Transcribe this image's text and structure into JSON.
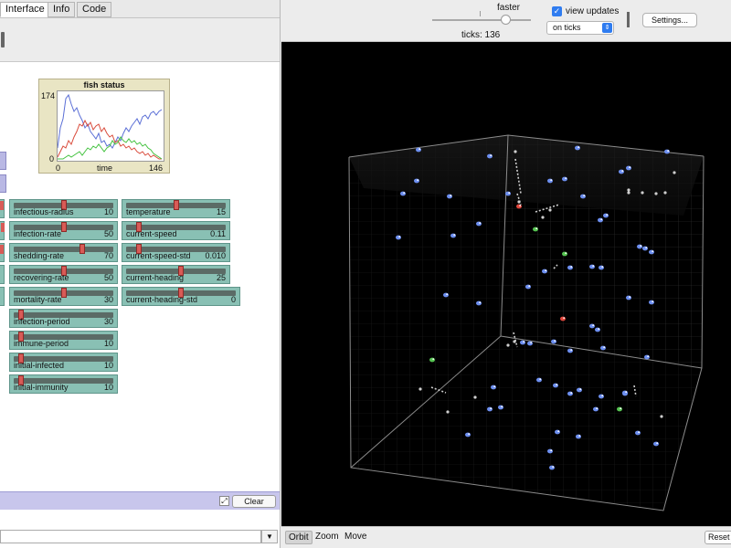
{
  "tabs": [
    {
      "label": "Interface",
      "active": true
    },
    {
      "label": "Info",
      "active": false
    },
    {
      "label": "Code",
      "active": false
    }
  ],
  "plot": {
    "title": "fish status",
    "y_max_label": "174",
    "y_min_label": "0",
    "x_min_label": "0",
    "x_axis_label": "time",
    "x_max_label": "146"
  },
  "sliders": [
    {
      "label": "infectious-radius",
      "value": "10",
      "fraction": 0.5
    },
    {
      "label": "infection-rate",
      "value": "50",
      "fraction": 0.5
    },
    {
      "label": "shedding-rate",
      "value": "70",
      "fraction": 0.7
    },
    {
      "label": "recovering-rate",
      "value": "50",
      "fraction": 0.5
    },
    {
      "label": "mortality-rate",
      "value": "30",
      "fraction": 0.5
    },
    {
      "label": "infection-period",
      "value": "30",
      "fraction": 0.04
    },
    {
      "label": "immune-period",
      "value": "10",
      "fraction": 0.04
    },
    {
      "label": "initial-infected",
      "value": "10",
      "fraction": 0.04
    },
    {
      "label": "initial-immunity",
      "value": "10",
      "fraction": 0.04
    },
    {
      "label": "temperature",
      "value": "15",
      "fraction": 0.5
    },
    {
      "label": "current-speed",
      "value": "0.11",
      "fraction": 0.1
    },
    {
      "label": "current-speed-std",
      "value": "0.010",
      "fraction": 0.1
    },
    {
      "label": "current-heading",
      "value": "25",
      "fraction": 0.55
    },
    {
      "label": "current-heading-std",
      "value": "0",
      "fraction": 0.5
    }
  ],
  "command_center": {
    "clear_label": "Clear",
    "expand_icon": "expand-arrows-icon"
  },
  "toolbar": {
    "speed_label": "faster",
    "speed_fraction": 0.75,
    "ticks_text": "ticks: 136",
    "view_updates_label": "view updates",
    "view_updates_checked": true,
    "update_mode": "on ticks",
    "settings_label": "Settings..."
  },
  "view_controls": {
    "modes": [
      {
        "label": "Orbit",
        "active": true
      },
      {
        "label": "Zoom",
        "active": false
      },
      {
        "label": "Move",
        "active": false
      }
    ],
    "reset_label": "Reset Perspective"
  },
  "colors": {
    "slider_bg": "#89c0b4",
    "slider_knob": "#d85b57",
    "plot_bg": "#e9e5c4",
    "fish_blue": "#6d8ff0",
    "fish_green": "#56c452",
    "fish_red": "#e0473d",
    "fish_gray": "#cfcfcf",
    "series_blue": "#5b6fd6",
    "series_red": "#d94a3a",
    "series_green": "#43c23f"
  }
}
